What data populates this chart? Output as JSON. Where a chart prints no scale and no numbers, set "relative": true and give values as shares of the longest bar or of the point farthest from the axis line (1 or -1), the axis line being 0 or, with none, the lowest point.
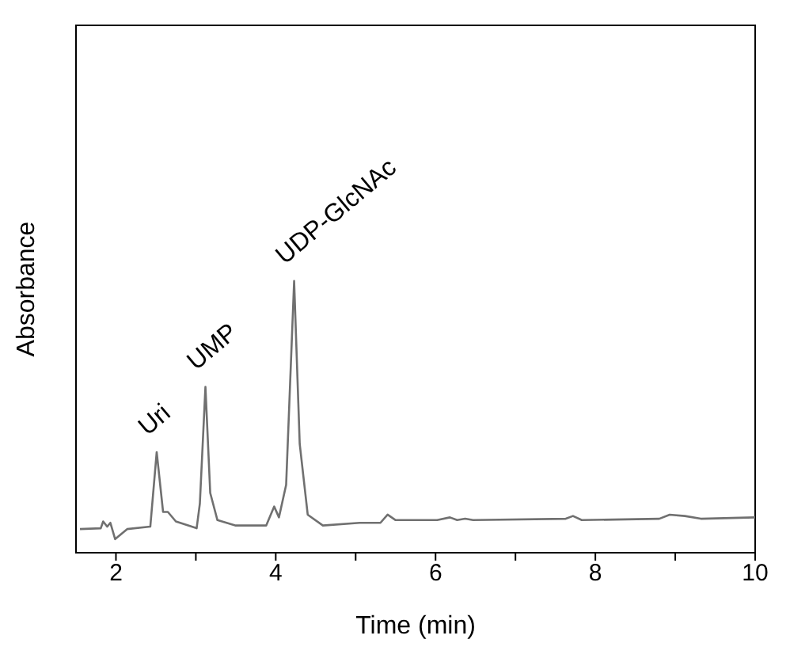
{
  "chart_data": {
    "type": "line",
    "relative": true,
    "xlabel": "Time (min)",
    "ylabel": "Absorbance",
    "x": [
      1.55,
      1.81,
      1.84,
      1.89,
      1.93,
      1.99,
      2.14,
      2.43,
      2.51,
      2.59,
      2.65,
      2.75,
      3.01,
      3.05,
      3.12,
      3.18,
      3.27,
      3.5,
      3.88,
      3.98,
      4.04,
      4.13,
      4.23,
      4.3,
      4.4,
      4.59,
      5.05,
      5.31,
      5.4,
      5.5,
      6.02,
      6.18,
      6.27,
      6.37,
      6.47,
      7.63,
      7.72,
      7.83,
      8.8,
      8.93,
      9.12,
      9.32,
      10
    ],
    "series": [
      {
        "color": "#707070",
        "values": [
          0.087,
          0.09,
          0.115,
          0.096,
          0.11,
          0.05,
          0.087,
          0.096,
          0.37,
          0.15,
          0.15,
          0.115,
          0.09,
          0.18,
          0.61,
          0.22,
          0.12,
          0.1,
          0.1,
          0.17,
          0.13,
          0.25,
          1,
          0.4,
          0.14,
          0.1,
          0.11,
          0.11,
          0.14,
          0.12,
          0.12,
          0.13,
          0.12,
          0.125,
          0.12,
          0.125,
          0.135,
          0.12,
          0.125,
          0.14,
          0.135,
          0.125,
          0.13
        ]
      }
    ],
    "xlim": [
      1.5,
      10
    ],
    "xticks": [
      2,
      {
        "value": 3,
        "label": null
      },
      4,
      {
        "value": 5,
        "label": null
      },
      6,
      {
        "value": 7,
        "label": null
      },
      8,
      {
        "value": 9,
        "label": null
      },
      10
    ],
    "annotations": [
      {
        "text": "Uri",
        "x": 2.51,
        "y": 0.37
      },
      {
        "text": "UMP",
        "x": 3.12,
        "y": 0.61
      },
      {
        "text": "UDP-GlcNAc",
        "x": 4.23,
        "y": 1
      }
    ],
    "marker": "none",
    "line_style": "solid"
  }
}
